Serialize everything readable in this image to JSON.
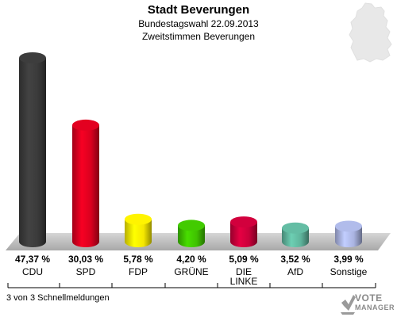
{
  "header": {
    "title": "Stadt Beverungen",
    "subtitle": "Bundestagswahl 22.09.2013",
    "subtitle2": "Zweitstimmen Beverungen"
  },
  "footer": {
    "status": "3 von 3 Schnellmeldungen",
    "logo_line1": "VOTE",
    "logo_line2": "MANAGER"
  },
  "chart_data": {
    "type": "bar",
    "categories": [
      "CDU",
      "SPD",
      "FDP",
      "GRÜNE",
      "DIE LINKE",
      "AfD",
      "Sonstige"
    ],
    "values": [
      47.37,
      30.03,
      5.78,
      4.2,
      5.09,
      3.52,
      3.99
    ],
    "value_labels": [
      "47,37 %",
      "30,03 %",
      "5,78 %",
      "4,20 %",
      "5,09 %",
      "3,52 %",
      "3,99 %"
    ],
    "colors": [
      "#3a3a3a",
      "#d8001e",
      "#f5e800",
      "#3fc100",
      "#c8003a",
      "#5fb49c",
      "#a9b3e0"
    ],
    "ylim": [
      0,
      50
    ]
  }
}
